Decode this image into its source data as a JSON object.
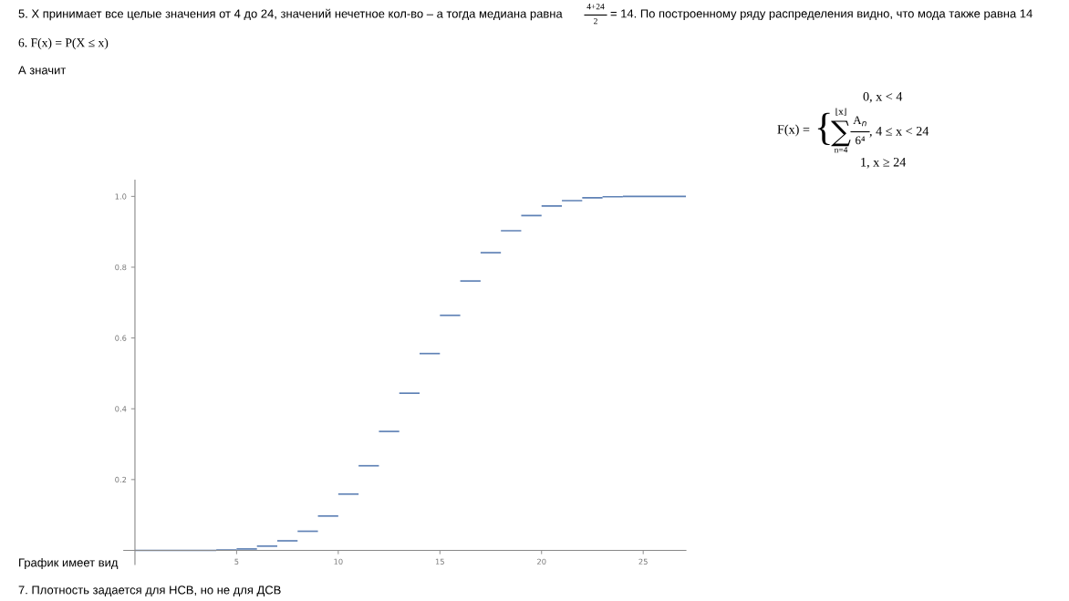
{
  "chart_data": {
    "type": "step",
    "x": [
      0,
      4,
      5,
      6,
      7,
      8,
      9,
      10,
      11,
      12,
      13,
      14,
      15,
      16,
      17,
      18,
      19,
      20,
      21,
      22,
      23,
      24,
      27.1
    ],
    "series": [
      {
        "color": "#5e81b5",
        "values": [
          0,
          0.001,
          0.004,
          0.012,
          0.027,
          0.054,
          0.097,
          0.159,
          0.239,
          0.336,
          0.444,
          0.556,
          0.664,
          0.761,
          0.841,
          0.903,
          0.946,
          0.973,
          0.988,
          0.996,
          0.999,
          1,
          1
        ]
      }
    ],
    "xlim": [
      -0.55,
      27.1
    ],
    "ylim": [
      -0.04,
      1.046
    ],
    "xticks": [
      5,
      10,
      15,
      20,
      25
    ],
    "yticks": [
      {
        "value": 0.2,
        "label": "0.2"
      },
      {
        "value": 0.4,
        "label": "0.4"
      },
      {
        "value": 0.6,
        "label": "0.6"
      },
      {
        "value": 0.8,
        "label": "0.8"
      },
      {
        "value": 1,
        "label": "1.0"
      }
    ],
    "grid": false,
    "legend": false,
    "annotations": [
      "5. X принимает все целые значения от 4 до 24, значений нечетное кол-во – а тогда медиана равна",
      "4+24",
      "2",
      "= 14. По построенному ряду распределения видно, что мода также равна 14",
      "6. F(x) = P(X ≤ x)",
      "А значит",
      "F(x) =",
      "{",
      "0, x < 4",
      "⌊x⌋",
      "∑",
      "n=4",
      "A$_{n}$",
      "6⁴",
      ", 4 ≤ x < 24",
      "1, x ≥ 24",
      "График имеет вид",
      "7. Плотность задается для НСВ, но не для ДСВ"
    ]
  }
}
